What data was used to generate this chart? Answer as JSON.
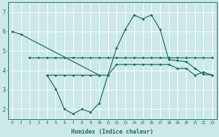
{
  "xlabel": "Humidex (Indice chaleur)",
  "xlim": [
    -0.5,
    23.5
  ],
  "ylim": [
    1.5,
    7.5
  ],
  "yticks": [
    2,
    3,
    4,
    5,
    6,
    7
  ],
  "xticks": [
    0,
    1,
    2,
    3,
    4,
    5,
    6,
    7,
    8,
    9,
    10,
    11,
    12,
    13,
    14,
    15,
    16,
    17,
    18,
    19,
    20,
    21,
    22,
    23
  ],
  "bg_color": "#cce8e8",
  "line_color": "#1a6b6b",
  "grid_color": "#ffffff",
  "lines": [
    {
      "x": [
        0,
        1,
        10
      ],
      "y": [
        6.0,
        5.85,
        3.75
      ]
    },
    {
      "x": [
        2,
        3,
        4,
        5,
        6,
        7,
        8,
        9,
        10,
        11,
        12,
        13,
        14,
        15,
        16,
        17,
        18,
        19,
        20,
        21,
        22,
        23
      ],
      "y": [
        4.65,
        4.65,
        4.65,
        4.65,
        4.65,
        4.65,
        4.65,
        4.65,
        4.65,
        4.65,
        4.65,
        4.65,
        4.65,
        4.65,
        4.65,
        4.65,
        4.65,
        4.65,
        4.65,
        4.65,
        4.65,
        4.65
      ]
    },
    {
      "x": [
        4,
        5,
        6,
        7,
        8,
        9,
        10,
        11,
        12,
        13,
        14,
        15,
        16,
        17,
        18,
        19,
        20,
        21,
        22,
        23
      ],
      "y": [
        3.75,
        3.05,
        2.0,
        1.75,
        2.0,
        1.85,
        2.3,
        3.75,
        5.15,
        6.1,
        6.85,
        6.65,
        6.85,
        6.1,
        4.55,
        4.5,
        4.45,
        4.1,
        3.8,
        3.75
      ]
    },
    {
      "x": [
        4,
        5,
        6,
        7,
        8,
        9,
        10,
        11,
        12,
        13,
        14,
        15,
        16,
        17,
        18,
        19,
        20,
        21,
        22,
        23
      ],
      "y": [
        3.75,
        3.75,
        3.75,
        3.75,
        3.75,
        3.75,
        3.75,
        3.75,
        4.3,
        4.3,
        4.3,
        4.3,
        4.3,
        4.3,
        4.3,
        4.1,
        4.1,
        3.75,
        3.9,
        3.75
      ]
    }
  ]
}
